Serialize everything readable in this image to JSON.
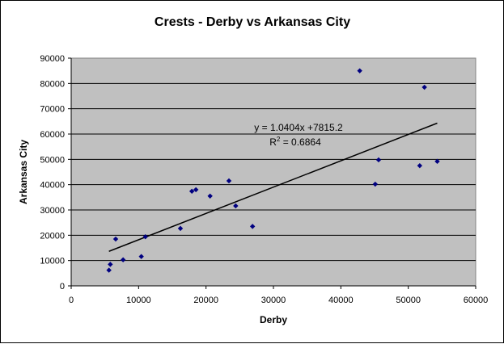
{
  "chart_data": {
    "type": "scatter",
    "title": "Crests - Derby vs Arkansas City",
    "xlabel": "Derby",
    "ylabel": "Arkansas City",
    "xlim": [
      0,
      60000
    ],
    "ylim": [
      0,
      90000
    ],
    "x_ticks": [
      "0",
      "10000",
      "20000",
      "30000",
      "40000",
      "50000",
      "60000"
    ],
    "y_ticks": [
      "0",
      "10000",
      "20000",
      "30000",
      "40000",
      "50000",
      "60000",
      "70000",
      "80000",
      "90000"
    ],
    "grid": "horizontal",
    "plot_background": "#c0c0c0",
    "marker_color": "#000080",
    "trendline": {
      "slope": 1.0404,
      "intercept": 7815.2,
      "x_range": [
        5600,
        54300
      ],
      "equation_text": "y = 1.0404x +7815.2",
      "r2_prefix": "R",
      "r2_sup": "2",
      "r2_suffix": " = 0.6864"
    },
    "points": [
      {
        "x": 5600,
        "y": 6200
      },
      {
        "x": 5800,
        "y": 8500
      },
      {
        "x": 6600,
        "y": 18500
      },
      {
        "x": 7700,
        "y": 10300
      },
      {
        "x": 10400,
        "y": 11600
      },
      {
        "x": 11000,
        "y": 19400
      },
      {
        "x": 16200,
        "y": 22700
      },
      {
        "x": 17900,
        "y": 37400
      },
      {
        "x": 18500,
        "y": 38000
      },
      {
        "x": 20600,
        "y": 35500
      },
      {
        "x": 23400,
        "y": 41500
      },
      {
        "x": 24400,
        "y": 31600
      },
      {
        "x": 26900,
        "y": 23500
      },
      {
        "x": 42800,
        "y": 85000
      },
      {
        "x": 45100,
        "y": 40200
      },
      {
        "x": 45600,
        "y": 49800
      },
      {
        "x": 51700,
        "y": 47500
      },
      {
        "x": 52400,
        "y": 78500
      },
      {
        "x": 54300,
        "y": 49200
      }
    ]
  }
}
